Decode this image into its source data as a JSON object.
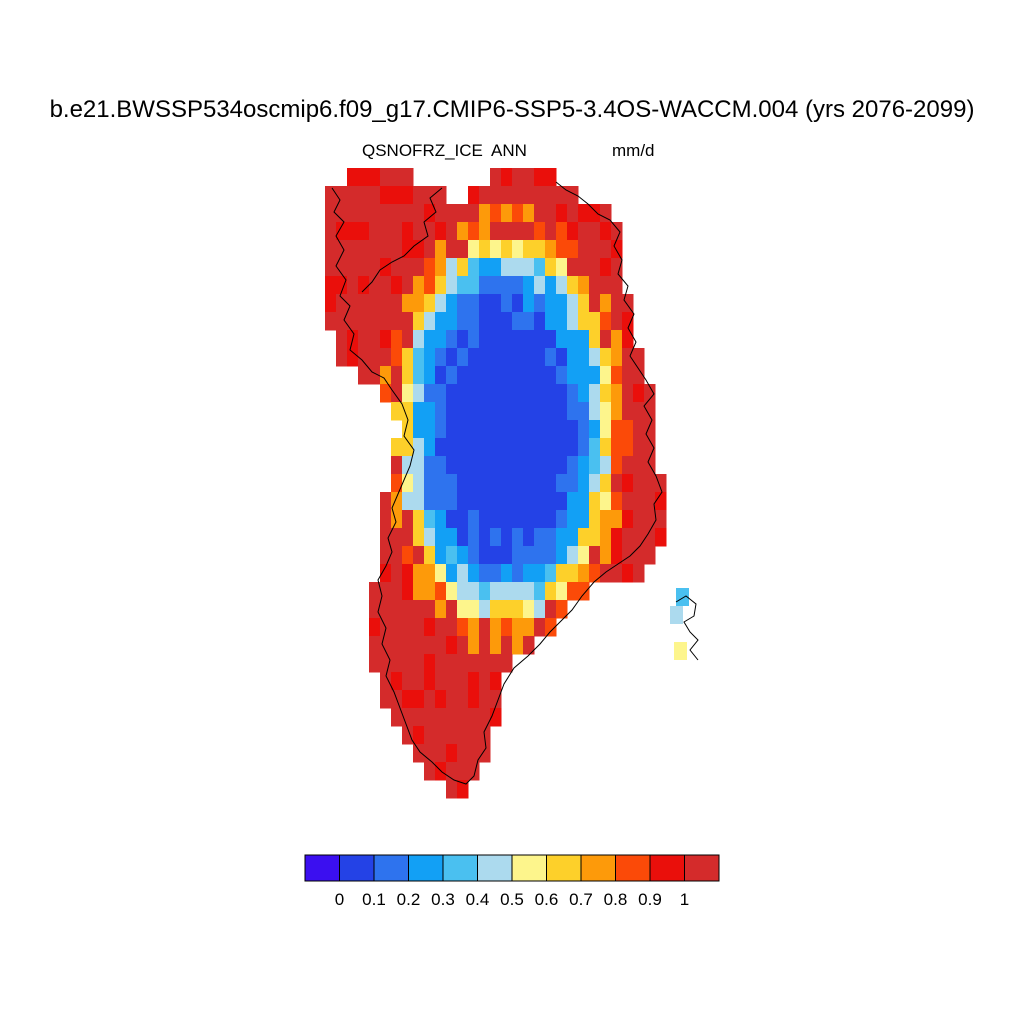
{
  "title": "b.e21.BWSSP534oscmip6.f09_g17.CMIP6-SSP5-3.4OS-WACCM.004 (yrs 2076-2099)",
  "subtitle_left": "QSNOFRZ_ICE",
  "subtitle_center": "ANN",
  "subtitle_right": "mm/d",
  "colorbar": {
    "colors": [
      "#3b0ff0",
      "#2442e6",
      "#2e73ee",
      "#12a0f5",
      "#4ac0f0",
      "#acdaee",
      "#fdf58c",
      "#fdd02a",
      "#fd9a0a",
      "#fb4a08",
      "#ea0f0b",
      "#d42b2b"
    ],
    "tick_labels": [
      "0",
      "0.1",
      "0.2",
      "0.3",
      "0.4",
      "0.5",
      "0.6",
      "0.7",
      "0.8",
      "0.9",
      "1"
    ]
  }
}
